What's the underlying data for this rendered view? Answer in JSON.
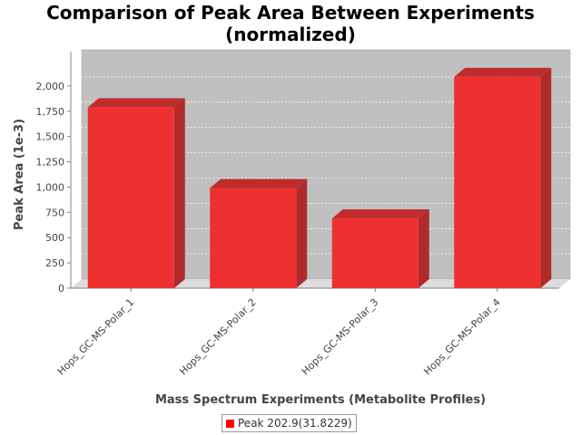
{
  "chart_data": {
    "type": "bar",
    "title_line1": "Comparison of Peak Area Between Experiments",
    "title_line2": "(normalized)",
    "xlabel": "Mass Spectrum Experiments (Metabolite Profiles)",
    "ylabel": "Peak Area (1e-3)",
    "categories": [
      "Hops_GC-MS-Polar_1",
      "Hops_GC-MS-Polar_2",
      "Hops_GC-MS-Polar_3",
      "Hops_GC-MS-Polar_4"
    ],
    "series": [
      {
        "name": "Peak 202.9(31.8229)",
        "values": [
          1790,
          990,
          690,
          2090
        ]
      }
    ],
    "ylim": [
      0,
      2250
    ],
    "yticks": [
      0,
      250,
      500,
      750,
      1000,
      1250,
      1500,
      1750,
      2000
    ],
    "ytick_labels": [
      "0",
      "250",
      "500",
      "750",
      "1,000",
      "1,250",
      "1,500",
      "1,750",
      "2,000"
    ],
    "grid": true,
    "legend_position": "bottom",
    "colors": {
      "bar_front": "#ef3030",
      "bar_side": "#b02a2a",
      "bar_top": "#c02c2c",
      "plot_back": "#c0c0c0",
      "plot_floor": "#dcdcdc",
      "legend_swatch": "#ff0000"
    }
  }
}
